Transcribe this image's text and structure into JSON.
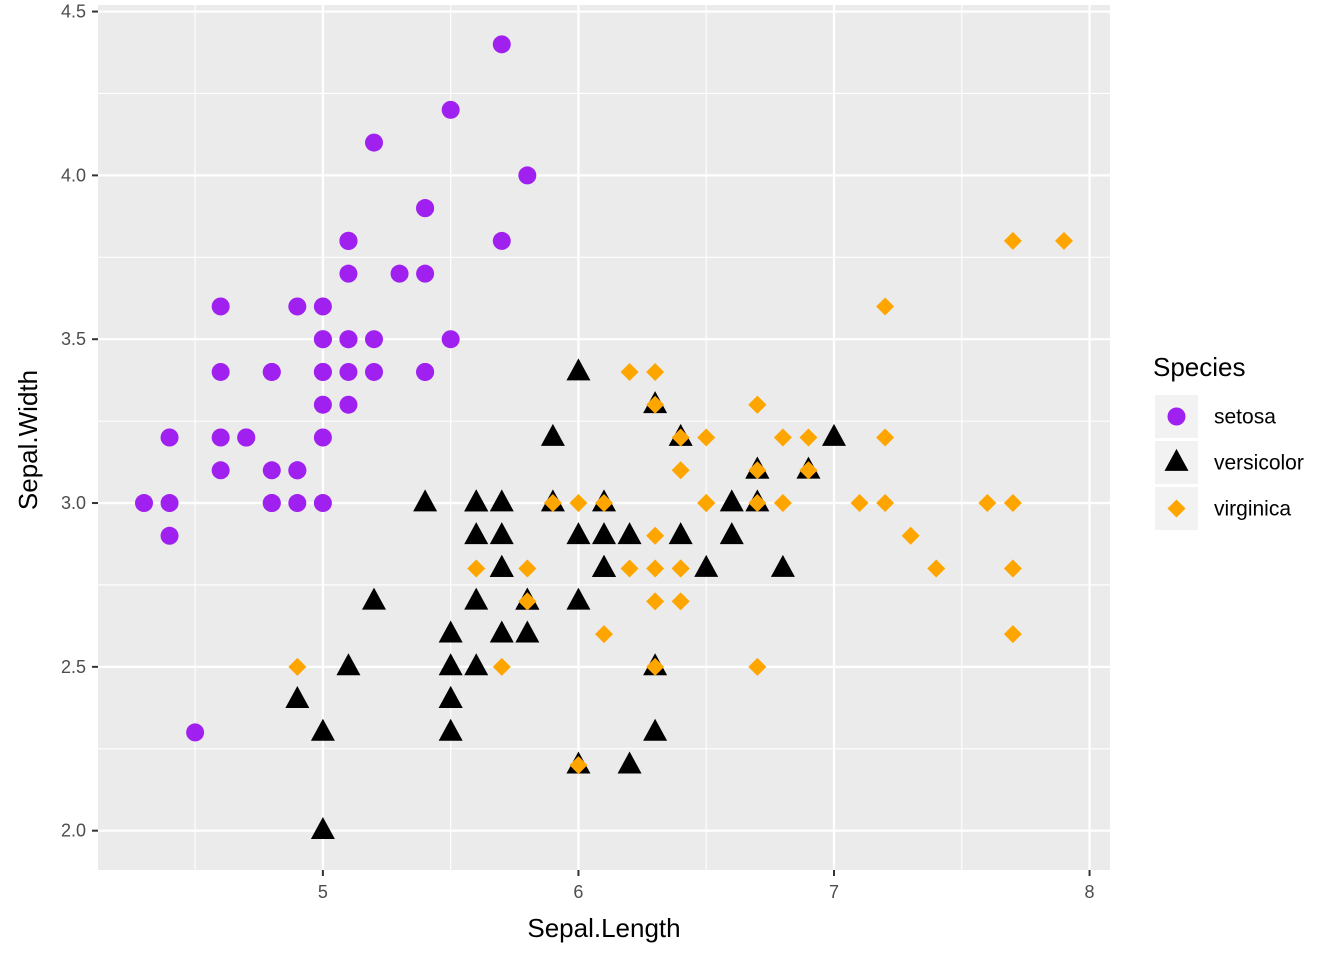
{
  "chart_data": {
    "type": "scatter",
    "title": "",
    "xlabel": "Sepal.Length",
    "ylabel": "Sepal.Width",
    "xlim": [
      4.12,
      8.08
    ],
    "ylim": [
      1.88,
      4.52
    ],
    "x_ticks": [
      5,
      6,
      7,
      8
    ],
    "x_tick_labels": [
      "5",
      "6",
      "7",
      "8"
    ],
    "y_ticks": [
      2.0,
      2.5,
      3.0,
      3.5,
      4.0,
      4.5
    ],
    "y_tick_labels": [
      "2.0",
      "2.5",
      "3.0",
      "3.5",
      "4.0",
      "4.5"
    ],
    "legend": {
      "title": "Species",
      "position": "right"
    },
    "series": [
      {
        "name": "setosa",
        "shape": "circle",
        "color": "#A020F0",
        "points": [
          [
            5.1,
            3.5
          ],
          [
            4.9,
            3.0
          ],
          [
            4.7,
            3.2
          ],
          [
            4.6,
            3.1
          ],
          [
            5.0,
            3.6
          ],
          [
            5.4,
            3.9
          ],
          [
            4.6,
            3.4
          ],
          [
            5.0,
            3.4
          ],
          [
            4.4,
            2.9
          ],
          [
            4.9,
            3.1
          ],
          [
            5.4,
            3.7
          ],
          [
            4.8,
            3.4
          ],
          [
            4.8,
            3.0
          ],
          [
            4.3,
            3.0
          ],
          [
            5.8,
            4.0
          ],
          [
            5.7,
            4.4
          ],
          [
            5.4,
            3.9
          ],
          [
            5.1,
            3.5
          ],
          [
            5.7,
            3.8
          ],
          [
            5.1,
            3.8
          ],
          [
            5.4,
            3.4
          ],
          [
            5.1,
            3.7
          ],
          [
            4.6,
            3.6
          ],
          [
            5.1,
            3.3
          ],
          [
            4.8,
            3.4
          ],
          [
            5.0,
            3.0
          ],
          [
            5.0,
            3.4
          ],
          [
            5.2,
            3.5
          ],
          [
            5.2,
            3.4
          ],
          [
            4.7,
            3.2
          ],
          [
            4.8,
            3.1
          ],
          [
            5.4,
            3.4
          ],
          [
            5.2,
            4.1
          ],
          [
            5.5,
            4.2
          ],
          [
            4.9,
            3.1
          ],
          [
            5.0,
            3.2
          ],
          [
            5.5,
            3.5
          ],
          [
            4.9,
            3.6
          ],
          [
            4.4,
            3.0
          ],
          [
            5.1,
            3.4
          ],
          [
            5.0,
            3.5
          ],
          [
            4.5,
            2.3
          ],
          [
            4.4,
            3.2
          ],
          [
            5.0,
            3.5
          ],
          [
            5.1,
            3.8
          ],
          [
            4.8,
            3.0
          ],
          [
            5.1,
            3.8
          ],
          [
            4.6,
            3.2
          ],
          [
            5.3,
            3.7
          ],
          [
            5.0,
            3.3
          ]
        ]
      },
      {
        "name": "versicolor",
        "shape": "triangle",
        "color": "#000000",
        "points": [
          [
            7.0,
            3.2
          ],
          [
            6.4,
            3.2
          ],
          [
            6.9,
            3.1
          ],
          [
            5.5,
            2.3
          ],
          [
            6.5,
            2.8
          ],
          [
            5.7,
            2.8
          ],
          [
            6.3,
            3.3
          ],
          [
            4.9,
            2.4
          ],
          [
            6.6,
            2.9
          ],
          [
            5.2,
            2.7
          ],
          [
            5.0,
            2.0
          ],
          [
            5.9,
            3.0
          ],
          [
            6.0,
            2.2
          ],
          [
            6.1,
            2.9
          ],
          [
            5.6,
            2.9
          ],
          [
            6.7,
            3.1
          ],
          [
            5.6,
            3.0
          ],
          [
            5.8,
            2.7
          ],
          [
            6.2,
            2.2
          ],
          [
            5.6,
            2.5
          ],
          [
            5.9,
            3.2
          ],
          [
            6.1,
            2.8
          ],
          [
            6.3,
            2.5
          ],
          [
            6.1,
            2.8
          ],
          [
            6.4,
            2.9
          ],
          [
            6.6,
            3.0
          ],
          [
            6.8,
            2.8
          ],
          [
            6.7,
            3.0
          ],
          [
            6.0,
            2.9
          ],
          [
            5.7,
            2.6
          ],
          [
            5.5,
            2.4
          ],
          [
            5.5,
            2.4
          ],
          [
            5.8,
            2.7
          ],
          [
            6.0,
            2.7
          ],
          [
            5.4,
            3.0
          ],
          [
            6.0,
            3.4
          ],
          [
            6.7,
            3.1
          ],
          [
            6.3,
            2.3
          ],
          [
            5.6,
            3.0
          ],
          [
            5.5,
            2.5
          ],
          [
            5.5,
            2.6
          ],
          [
            6.1,
            3.0
          ],
          [
            5.8,
            2.6
          ],
          [
            5.0,
            2.3
          ],
          [
            5.6,
            2.7
          ],
          [
            5.7,
            3.0
          ],
          [
            5.7,
            2.9
          ],
          [
            6.2,
            2.9
          ],
          [
            5.1,
            2.5
          ],
          [
            5.7,
            2.8
          ]
        ]
      },
      {
        "name": "virginica",
        "shape": "diamond",
        "color": "#FFA500",
        "points": [
          [
            6.3,
            3.3
          ],
          [
            5.8,
            2.7
          ],
          [
            7.1,
            3.0
          ],
          [
            6.3,
            2.9
          ],
          [
            6.5,
            3.0
          ],
          [
            7.6,
            3.0
          ],
          [
            4.9,
            2.5
          ],
          [
            7.3,
            2.9
          ],
          [
            6.7,
            2.5
          ],
          [
            7.2,
            3.6
          ],
          [
            6.5,
            3.2
          ],
          [
            6.4,
            2.7
          ],
          [
            6.8,
            3.0
          ],
          [
            5.7,
            2.5
          ],
          [
            5.8,
            2.8
          ],
          [
            6.4,
            3.2
          ],
          [
            6.5,
            3.0
          ],
          [
            7.7,
            3.8
          ],
          [
            7.7,
            2.6
          ],
          [
            6.0,
            2.2
          ],
          [
            6.9,
            3.2
          ],
          [
            5.6,
            2.8
          ],
          [
            7.7,
            2.8
          ],
          [
            6.3,
            2.7
          ],
          [
            6.7,
            3.3
          ],
          [
            7.2,
            3.2
          ],
          [
            6.2,
            2.8
          ],
          [
            6.1,
            3.0
          ],
          [
            6.4,
            2.8
          ],
          [
            7.2,
            3.0
          ],
          [
            7.4,
            2.8
          ],
          [
            7.9,
            3.8
          ],
          [
            6.4,
            2.8
          ],
          [
            6.3,
            2.8
          ],
          [
            6.1,
            2.6
          ],
          [
            7.7,
            3.0
          ],
          [
            6.3,
            3.4
          ],
          [
            6.4,
            3.1
          ],
          [
            6.0,
            3.0
          ],
          [
            6.9,
            3.1
          ],
          [
            6.7,
            3.1
          ],
          [
            6.9,
            3.1
          ],
          [
            5.8,
            2.7
          ],
          [
            6.8,
            3.2
          ],
          [
            6.7,
            3.3
          ],
          [
            6.7,
            3.0
          ],
          [
            6.3,
            2.5
          ],
          [
            6.5,
            3.0
          ],
          [
            6.2,
            3.4
          ],
          [
            5.9,
            3.0
          ]
        ]
      }
    ]
  },
  "style": {
    "panel_background": "#EBEBEB",
    "grid_color": "#FFFFFF"
  }
}
